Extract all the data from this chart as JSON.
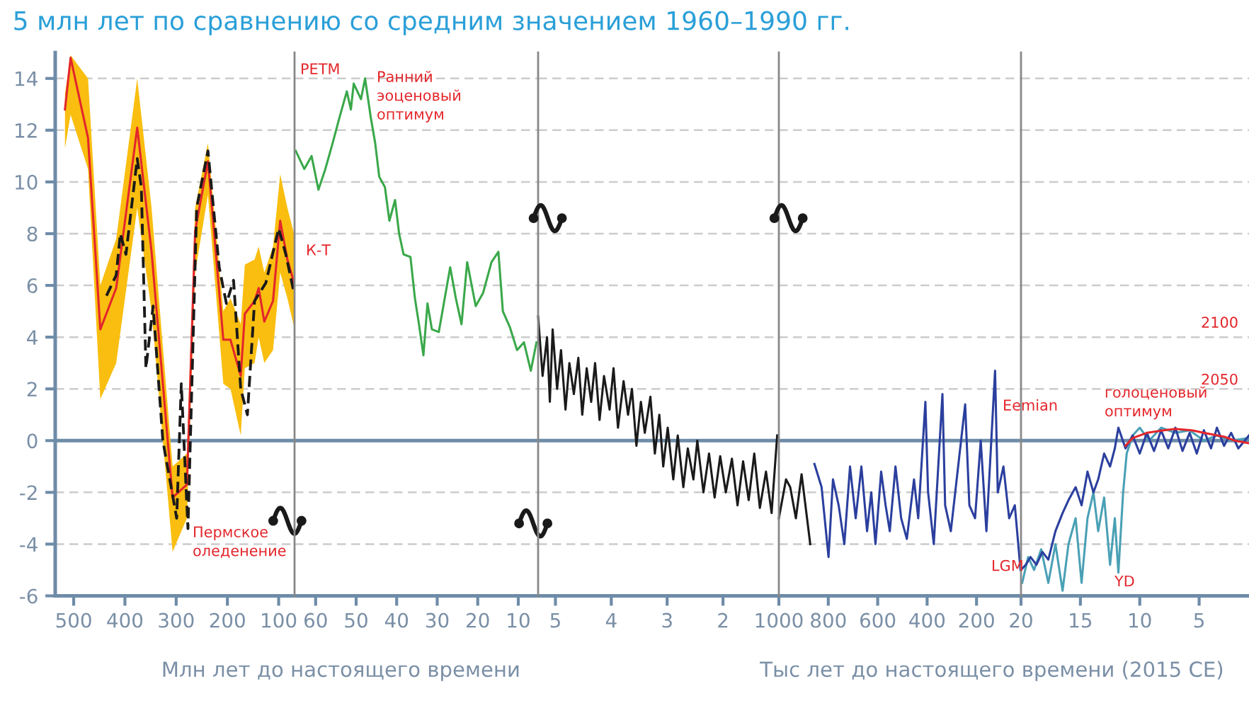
{
  "chart_data": [
    {
      "type": "line",
      "title": "5 млн лет по сравнению со средним значением 1960–1990 гг.",
      "xlim": [
        536,
        69
      ],
      "xticks": [
        500,
        400,
        300,
        200,
        100
      ],
      "ylim": [
        -6,
        15
      ],
      "yticks": [
        -6,
        -4,
        -2,
        0,
        2,
        4,
        6,
        8,
        10,
        12,
        14
      ],
      "grid": "y",
      "ref_lines": [
        {
          "axis": "y",
          "value": 0,
          "color": "#6e8ca8"
        }
      ],
      "series": [
        {
          "type": "line",
          "color": "#e3262b",
          "line_style": "solid",
          "x": [
            517,
            506,
            472,
            448,
            417,
            376,
            348,
            307,
            279,
            263,
            238,
            208,
            194,
            174,
            166,
            147,
            139,
            128,
            111,
            97,
            83,
            70
          ],
          "values": [
            12.8,
            14.8,
            11.7,
            4.3,
            5.9,
            12.1,
            7.3,
            -2.2,
            -1.7,
            8.1,
            10.8,
            3.9,
            3.9,
            2.5,
            4.9,
            5.4,
            5.9,
            4.6,
            5.4,
            8.5,
            7.0,
            6.1
          ],
          "lower": [
            11.3,
            12.6,
            10.5,
            1.6,
            3.0,
            9.0,
            5.0,
            -4.3,
            -3.0,
            6.5,
            9.5,
            2.2,
            2.0,
            0.2,
            2.8,
            3.0,
            4.0,
            3.0,
            3.5,
            6.5,
            5.5,
            4.4
          ],
          "upper": [
            13.4,
            14.9,
            14.0,
            6.0,
            7.8,
            14.0,
            9.0,
            -1.0,
            -0.5,
            9.0,
            11.5,
            5.0,
            5.5,
            4.5,
            6.8,
            7.0,
            7.5,
            6.5,
            7.5,
            10.3,
            9.0,
            8.0
          ]
        },
        {
          "type": "line",
          "color": "#1a1a1a",
          "line_style": "dashed",
          "x": [
            436,
            417,
            409,
            398,
            376,
            368,
            359,
            345,
            326,
            299,
            290,
            277,
            260,
            238,
            216,
            202,
            188,
            174,
            161,
            147,
            125,
            100,
            86,
            70
          ],
          "values": [
            5.6,
            6.4,
            8.0,
            7.2,
            10.9,
            9.8,
            2.8,
            5.2,
            0.0,
            -3.0,
            2.2,
            -3.4,
            9.0,
            11.2,
            6.7,
            5.3,
            6.2,
            2.0,
            1.0,
            5.4,
            6.1,
            8.2,
            7.2,
            5.7
          ]
        }
      ],
      "annotations": [
        "Пермское\nоледенение"
      ]
    },
    {
      "type": "line",
      "xlabel": "Млн лет до настоящего времени",
      "xlim": [
        65.2,
        5.1
      ],
      "xticks": [
        60,
        50,
        40,
        30,
        20,
        10
      ],
      "ylim": [
        -6,
        15
      ],
      "yticks": [
        -6,
        -4,
        -2,
        0,
        2,
        4,
        6,
        8,
        10,
        12,
        14
      ],
      "tick_labels": "x",
      "grid": "y",
      "ref_lines": [
        {
          "axis": "y",
          "value": 0,
          "color": "#6e8ca8"
        }
      ],
      "series": [
        {
          "type": "line",
          "color": "#3aa84a",
          "line_style": "solid",
          "x": [
            64.9,
            62.8,
            61.0,
            59.3,
            57.6,
            55.8,
            54.1,
            52.3,
            51.3,
            50.6,
            48.8,
            47.8,
            46.4,
            45.3,
            44.3,
            42.9,
            41.8,
            40.4,
            39.4,
            38.3,
            36.6,
            35.5,
            34.5,
            33.4,
            32.4,
            31.3,
            29.6,
            26.8,
            25.4,
            24.0,
            22.6,
            20.5,
            18.7,
            16.6,
            14.9,
            13.8,
            12.1,
            10.3,
            8.6,
            6.9,
            5.5
          ],
          "values": [
            11.2,
            10.5,
            11.0,
            9.7,
            10.5,
            11.5,
            12.5,
            13.5,
            12.8,
            13.8,
            13.2,
            14.0,
            12.5,
            11.5,
            10.2,
            9.8,
            8.5,
            9.3,
            8.0,
            7.2,
            7.1,
            5.5,
            4.5,
            3.3,
            5.3,
            4.3,
            4.2,
            6.7,
            5.5,
            4.5,
            6.9,
            5.2,
            5.7,
            6.9,
            7.3,
            5.0,
            4.4,
            3.5,
            3.8,
            2.7,
            3.8
          ]
        }
      ],
      "annotations": [
        "PETM",
        "Ранний\nэоценовый\nоптимум",
        "К-Т"
      ]
    },
    {
      "type": "line",
      "xlim": [
        5.31,
        1.0
      ],
      "xticks": [
        5,
        4,
        3,
        2
      ],
      "ylim": [
        -6,
        15
      ],
      "yticks": [
        -6,
        -4,
        -2,
        0,
        2,
        4,
        6,
        8,
        10,
        12,
        14
      ],
      "tick_labels": "x",
      "grid": "y",
      "ref_lines": [
        {
          "axis": "y",
          "value": 0,
          "color": "#6e8ca8"
        }
      ],
      "series": [
        {
          "type": "line",
          "color": "#1a1a1a",
          "line_style": "solid",
          "x": [
            5.31,
            5.23,
            5.15,
            5.1,
            5.05,
            4.97,
            4.9,
            4.82,
            4.75,
            4.67,
            4.59,
            4.52,
            4.44,
            4.36,
            4.29,
            4.21,
            4.13,
            4.03,
            3.96,
            3.88,
            3.78,
            3.7,
            3.63,
            3.55,
            3.47,
            3.4,
            3.3,
            3.22,
            3.14,
            3.07,
            2.99,
            2.89,
            2.81,
            2.71,
            2.63,
            2.53,
            2.46,
            2.35,
            2.25,
            2.15,
            2.05,
            1.95,
            1.84,
            1.74,
            1.64,
            1.54,
            1.44,
            1.34,
            1.23,
            1.13,
            1.03
          ],
          "values": [
            4.8,
            2.5,
            4.0,
            1.5,
            4.3,
            2.0,
            3.5,
            1.2,
            3.0,
            1.8,
            3.2,
            1.0,
            2.8,
            1.5,
            3.0,
            0.8,
            2.5,
            1.2,
            2.8,
            0.5,
            2.3,
            1.0,
            2.0,
            -0.2,
            1.5,
            0.3,
            1.7,
            -0.5,
            1.0,
            -1.0,
            0.5,
            -1.5,
            0.2,
            -1.8,
            -0.3,
            -1.5,
            0.0,
            -2.0,
            -0.5,
            -2.2,
            -0.6,
            -2.0,
            -0.7,
            -2.5,
            -0.8,
            -2.3,
            -0.5,
            -2.6,
            -1.2,
            -2.8,
            0.2
          ]
        }
      ]
    },
    {
      "type": "line",
      "xlabel": "Тыс лет до настоящего времени (2015 CE)",
      "xlim": [
        1000,
        20
      ],
      "xticks": [
        1000,
        800,
        600,
        400,
        200
      ],
      "ylim": [
        -6,
        15
      ],
      "yticks": [
        -6,
        -4,
        -2,
        0,
        2,
        4,
        6,
        8,
        10,
        12,
        14
      ],
      "tick_labels": "x",
      "grid": "y",
      "ref_lines": [
        {
          "axis": "y",
          "value": 0,
          "color": "#6e8ca8"
        }
      ],
      "series": [
        {
          "type": "line",
          "color": "#1a1a1a",
          "line_style": "solid",
          "x": [
            1000,
            971,
            954,
            931,
            908,
            873
          ],
          "values": [
            -3.0,
            -1.5,
            -1.8,
            -3.0,
            -1.3,
            -4.0
          ]
        },
        {
          "type": "line",
          "color": "#2b3f9e",
          "line_style": "solid",
          "x": [
            856,
            827,
            799,
            781,
            758,
            735,
            712,
            689,
            666,
            643,
            626,
            609,
            586,
            568,
            551,
            528,
            505,
            482,
            453,
            436,
            407,
            396,
            373,
            338,
            327,
            304,
            246,
            229,
            206,
            183,
            160,
            125,
            114,
            91,
            68,
            45,
            22
          ],
          "values": [
            -0.9,
            -1.8,
            -4.5,
            -1.5,
            -2.5,
            -4.0,
            -1.0,
            -3.0,
            -1.0,
            -3.5,
            -2.0,
            -4.0,
            -1.2,
            -2.5,
            -3.5,
            -1.0,
            -3.0,
            -3.8,
            -1.5,
            -3.0,
            1.5,
            -2.0,
            -4.0,
            1.8,
            -2.5,
            -3.5,
            1.4,
            -2.5,
            -3.0,
            0.0,
            -3.5,
            2.7,
            -2.0,
            -1.0,
            -3.0,
            -2.5,
            -5.0
          ]
        }
      ],
      "annotations": [
        "Eemian"
      ]
    },
    {
      "type": "line",
      "xlim": [
        20,
        0.8
      ],
      "xticks": [
        20,
        15,
        10,
        5
      ],
      "ylim": [
        -6,
        15
      ],
      "yticks": [
        -6,
        -4,
        -2,
        0,
        2,
        4,
        6,
        8,
        10,
        12,
        14
      ],
      "tick_labels": "x",
      "grid": "y",
      "ref_lines": [
        {
          "axis": "y",
          "value": 0,
          "color": "#6e8ca8"
        }
      ],
      "series": [
        {
          "type": "line",
          "color": "#4aa0b5",
          "line_style": "solid",
          "x": [
            19.9,
            19.4,
            18.9,
            18.3,
            17.7,
            17.1,
            16.5,
            16.0,
            15.4,
            14.9,
            14.4,
            13.9,
            13.5,
            13.0,
            12.5,
            12.1,
            11.8,
            11.4,
            11.1,
            10.6,
            10.0,
            9.2,
            8.2,
            7.0,
            5.8,
            4.6,
            3.5,
            2.3,
            0.8
          ],
          "values": [
            -5.5,
            -4.5,
            -5.0,
            -4.2,
            -5.5,
            -4.0,
            -5.8,
            -4.0,
            -3.0,
            -5.5,
            -3.0,
            -2.0,
            -3.5,
            -2.2,
            -4.8,
            -3.0,
            -5.1,
            -2.0,
            -0.5,
            0.2,
            0.5,
            0.0,
            0.5,
            0.3,
            0.4,
            0.0,
            0.2,
            0.0,
            0.1
          ]
        },
        {
          "type": "line",
          "color": "#2b3f9e",
          "line_style": "solid",
          "x": [
            20,
            19.6,
            19.2,
            18.7,
            18.2,
            17.7,
            17.1,
            16.5,
            16.0,
            15.4,
            14.9,
            14.4,
            13.9,
            13.5,
            13.0,
            12.5,
            12.1,
            11.8,
            11.2,
            10.6,
            10.0,
            9.4,
            8.8,
            8.2,
            7.6,
            7.0,
            6.4,
            5.8,
            5.2,
            4.6,
            4.0,
            3.5,
            2.9,
            2.3,
            1.7,
            0.8
          ],
          "values": [
            -5.0,
            -4.8,
            -4.5,
            -4.8,
            -4.3,
            -4.6,
            -3.5,
            -2.8,
            -2.3,
            -1.8,
            -2.5,
            -1.2,
            -2.0,
            -1.5,
            -0.5,
            -1.0,
            -0.3,
            0.5,
            -0.3,
            0.2,
            -0.5,
            0.3,
            -0.4,
            0.4,
            -0.3,
            0.5,
            -0.4,
            0.3,
            -0.5,
            0.4,
            -0.3,
            0.5,
            -0.2,
            0.3,
            -0.3,
            0.2
          ]
        },
        {
          "type": "line",
          "color": "#e3262b",
          "line_style": "solid",
          "x": [
            11.2,
            10.6,
            9.4,
            8.0,
            7.0,
            5.6,
            4.6,
            2.9,
            2.0,
            0.8
          ],
          "values": [
            -0.2,
            0.1,
            0.3,
            0.4,
            0.45,
            0.4,
            0.3,
            0.15,
            0.0,
            -0.1
          ]
        }
      ],
      "annotations": [
        "LGM",
        "YD",
        "голоценовый\nоптимум",
        "2100",
        "2050"
      ]
    }
  ]
}
